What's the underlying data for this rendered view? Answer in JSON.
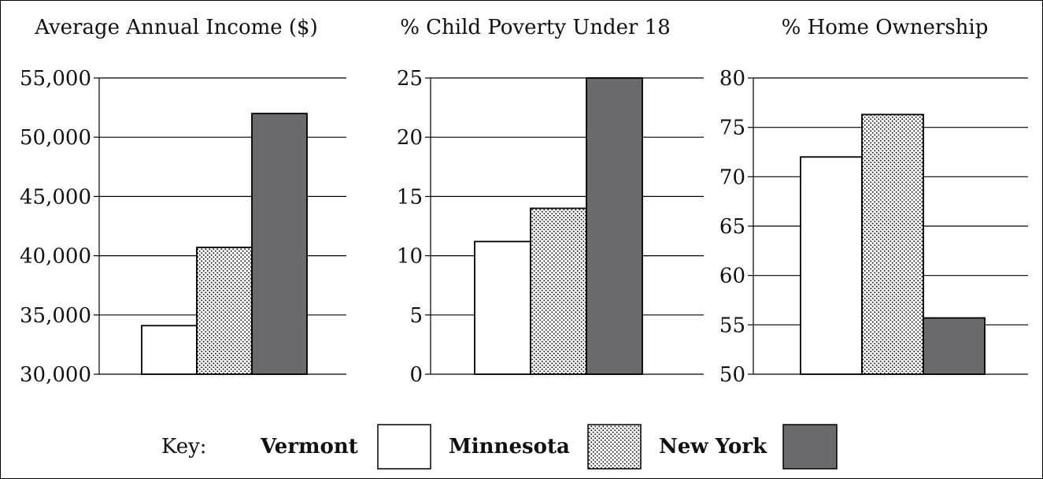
{
  "key": {
    "prefix": "Key:",
    "items": [
      {
        "label": "Vermont",
        "fill": "#ffffff"
      },
      {
        "label": "Minnesota",
        "fill": "url(#dots)"
      },
      {
        "label": "New York",
        "fill": "#6b6b6f"
      }
    ]
  },
  "colors": {
    "vermont": "#ffffff",
    "new_york": "#6b6b6f",
    "outline": "#000000",
    "gridline": "#000000"
  },
  "chart_data": [
    {
      "type": "bar",
      "title": "Average Annual Income ($)",
      "categories": [
        "Vermont",
        "Minnesota",
        "New York"
      ],
      "values": [
        34100,
        40700,
        52000
      ],
      "ylim": [
        30000,
        55000
      ],
      "ticks": [
        30000,
        35000,
        40000,
        45000,
        50000,
        55000
      ],
      "tick_labels": [
        "30,000",
        "35,000",
        "40,000",
        "45,000",
        "50,000",
        "55,000"
      ],
      "grid": true,
      "legend": "bottom"
    },
    {
      "type": "bar",
      "title": "% Child Poverty Under 18",
      "categories": [
        "Vermont",
        "Minnesota",
        "New York"
      ],
      "values": [
        11.2,
        14,
        25
      ],
      "ylim": [
        0,
        25
      ],
      "ticks": [
        0,
        5,
        10,
        15,
        20,
        25
      ],
      "tick_labels": [
        "0",
        "5",
        "10",
        "15",
        "20",
        "25"
      ],
      "grid": true,
      "legend": "bottom"
    },
    {
      "type": "bar",
      "title": "% Home Ownership",
      "categories": [
        "Vermont",
        "Minnesota",
        "New York"
      ],
      "values": [
        72,
        76.3,
        55.7
      ],
      "ylim": [
        50,
        80
      ],
      "ticks": [
        50,
        55,
        60,
        65,
        70,
        75,
        80
      ],
      "tick_labels": [
        "50",
        "55",
        "60",
        "65",
        "70",
        "75",
        "80"
      ],
      "grid": true,
      "legend": "bottom"
    }
  ]
}
